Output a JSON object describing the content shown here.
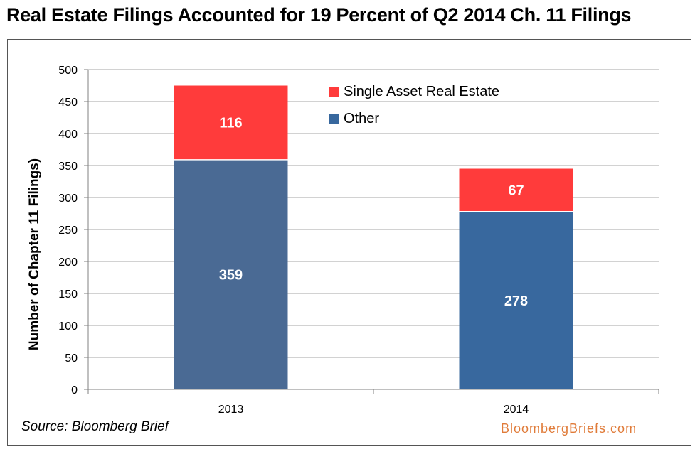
{
  "chart_data": {
    "type": "bar",
    "stacked": true,
    "title": "Real Estate Filings Accounted for 19 Percent of Q2 2014 Ch. 11 Filings",
    "xlabel": "",
    "ylabel": "Number of Chapter 11 Filings)",
    "ylim": [
      0,
      500
    ],
    "yticks": [
      0,
      50,
      100,
      150,
      200,
      250,
      300,
      350,
      400,
      450,
      500
    ],
    "categories": [
      "2013",
      "2014"
    ],
    "series": [
      {
        "name": "Other",
        "values": [
          359,
          278
        ],
        "colors": [
          "#4a6a94",
          "#38689e"
        ]
      },
      {
        "name": "Single Asset Real Estate",
        "values": [
          116,
          67
        ],
        "colors": [
          "#ff3b3b",
          "#ff3b3b"
        ]
      }
    ],
    "legend": "top-right",
    "grid": true,
    "data_labels": true
  },
  "source": "Source: Bloomberg Brief",
  "brand": "BloombergBriefs.com"
}
